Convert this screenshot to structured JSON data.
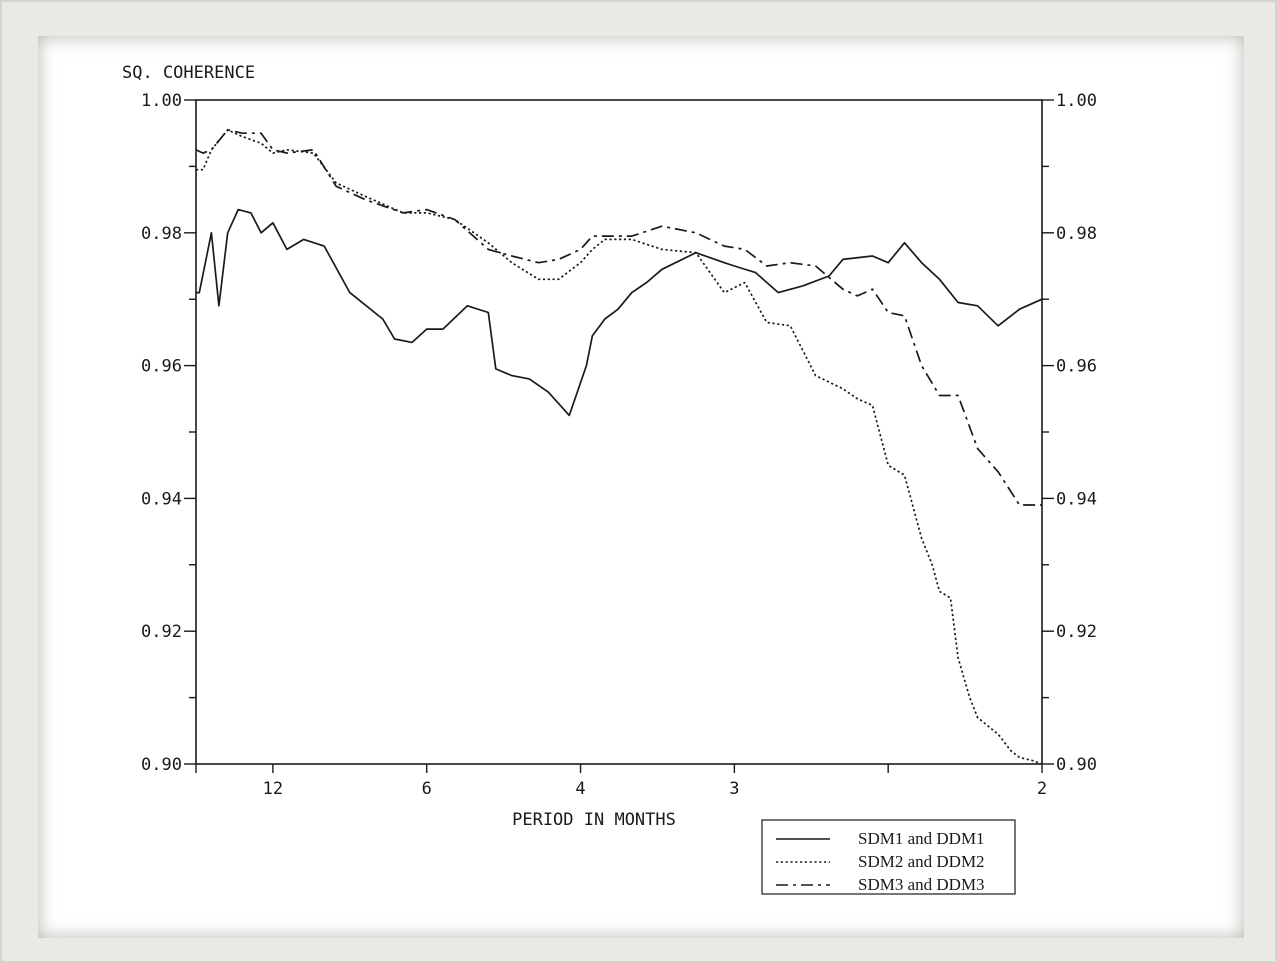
{
  "chart_data": {
    "type": "line",
    "ylabel": "SQ. COHERENCE",
    "xlabel": "PERIOD IN MONTHS",
    "ylim": [
      0.9,
      1.0
    ],
    "y_ticks": [
      "1.00",
      "0.98",
      "0.96",
      "0.94",
      "0.92",
      "0.90"
    ],
    "y_tick_values": [
      1.0,
      0.98,
      0.96,
      0.94,
      0.92,
      0.9
    ],
    "x_scale": "reciprocal",
    "xlim": [
      24,
      2
    ],
    "x_ticks": [
      {
        "period": 12,
        "label": "12"
      },
      {
        "period": 6,
        "label": "6"
      },
      {
        "period": 4,
        "label": "4"
      },
      {
        "period": 3,
        "label": "3"
      },
      {
        "period": 2.4,
        "label": ""
      },
      {
        "period": 2,
        "label": "2"
      }
    ],
    "legend_position": "bottom-right, outside plot",
    "grid": false,
    "series": [
      {
        "name": "SDM1 and DDM1",
        "style": "solid",
        "x": [
          24,
          23,
          20,
          18.5,
          17,
          15.5,
          14,
          13,
          12,
          11,
          10,
          9,
          8,
          7,
          6.7,
          6.3,
          6,
          5.7,
          5.3,
          5,
          4.9,
          4.7,
          4.5,
          4.3,
          4.1,
          3.95,
          3.9,
          3.8,
          3.7,
          3.6,
          3.5,
          3.4,
          3.2,
          3.05,
          3,
          2.9,
          2.8,
          2.7,
          2.6,
          2.55,
          2.45,
          2.4,
          2.35,
          2.3,
          2.25,
          2.2,
          2.15,
          2.1,
          2.05,
          2
        ],
        "y": [
          0.971,
          0.971,
          0.98,
          0.969,
          0.98,
          0.9835,
          0.983,
          0.98,
          0.9815,
          0.9775,
          0.979,
          0.978,
          0.971,
          0.967,
          0.964,
          0.9635,
          0.9655,
          0.9655,
          0.969,
          0.968,
          0.9595,
          0.9585,
          0.958,
          0.956,
          0.9525,
          0.96,
          0.9645,
          0.967,
          0.9685,
          0.971,
          0.9725,
          0.9745,
          0.977,
          0.9755,
          0.975,
          0.974,
          0.971,
          0.972,
          0.9735,
          0.976,
          0.9765,
          0.9755,
          0.9785,
          0.9755,
          0.973,
          0.9695,
          0.969,
          0.966,
          0.9685,
          0.97
        ]
      },
      {
        "name": "SDM2 and DDM2",
        "style": "dotted",
        "x": [
          24,
          22,
          20,
          17,
          15,
          13,
          12,
          11,
          9.5,
          8.5,
          7.5,
          6.5,
          6,
          5.5,
          5,
          4.7,
          4.4,
          4.2,
          4,
          3.9,
          3.8,
          3.6,
          3.4,
          3.2,
          3.05,
          2.95,
          2.85,
          2.75,
          2.65,
          2.55,
          2.5,
          2.45,
          2.4,
          2.35,
          2.3,
          2.27,
          2.25,
          2.22,
          2.2,
          2.17,
          2.15,
          2.12,
          2.1,
          2.07,
          2.05,
          2.02,
          2
        ],
        "y": [
          0.9895,
          0.9895,
          0.9925,
          0.9955,
          0.9945,
          0.9935,
          0.992,
          0.9925,
          0.992,
          0.9875,
          0.9855,
          0.983,
          0.983,
          0.982,
          0.9785,
          0.9755,
          0.973,
          0.973,
          0.9755,
          0.9775,
          0.979,
          0.979,
          0.9775,
          0.977,
          0.971,
          0.9725,
          0.9665,
          0.966,
          0.9585,
          0.9565,
          0.955,
          0.954,
          0.945,
          0.9435,
          0.934,
          0.93,
          0.926,
          0.925,
          0.916,
          0.91,
          0.907,
          0.9055,
          0.9045,
          0.902,
          0.901,
          0.9005,
          0.9
        ]
      },
      {
        "name": "SDM3 and DDM3",
        "style": "dashdot",
        "x": [
          24,
          22,
          20,
          17,
          15,
          13,
          12,
          11,
          9.5,
          8.5,
          7.5,
          6.5,
          6,
          5.5,
          5,
          4.7,
          4.4,
          4.2,
          4,
          3.9,
          3.8,
          3.6,
          3.4,
          3.2,
          3.05,
          2.95,
          2.85,
          2.75,
          2.65,
          2.55,
          2.5,
          2.45,
          2.4,
          2.35,
          2.3,
          2.25,
          2.2,
          2.15,
          2.1,
          2.05,
          2
        ],
        "y": [
          0.9925,
          0.992,
          0.9925,
          0.9955,
          0.995,
          0.995,
          0.9925,
          0.992,
          0.9925,
          0.987,
          0.985,
          0.983,
          0.9835,
          0.982,
          0.9775,
          0.9765,
          0.9755,
          0.976,
          0.9775,
          0.9795,
          0.9795,
          0.9795,
          0.981,
          0.98,
          0.978,
          0.9775,
          0.975,
          0.9755,
          0.975,
          0.9715,
          0.9705,
          0.9715,
          0.968,
          0.9675,
          0.96,
          0.9555,
          0.9555,
          0.9475,
          0.944,
          0.939,
          0.939
        ]
      }
    ]
  }
}
